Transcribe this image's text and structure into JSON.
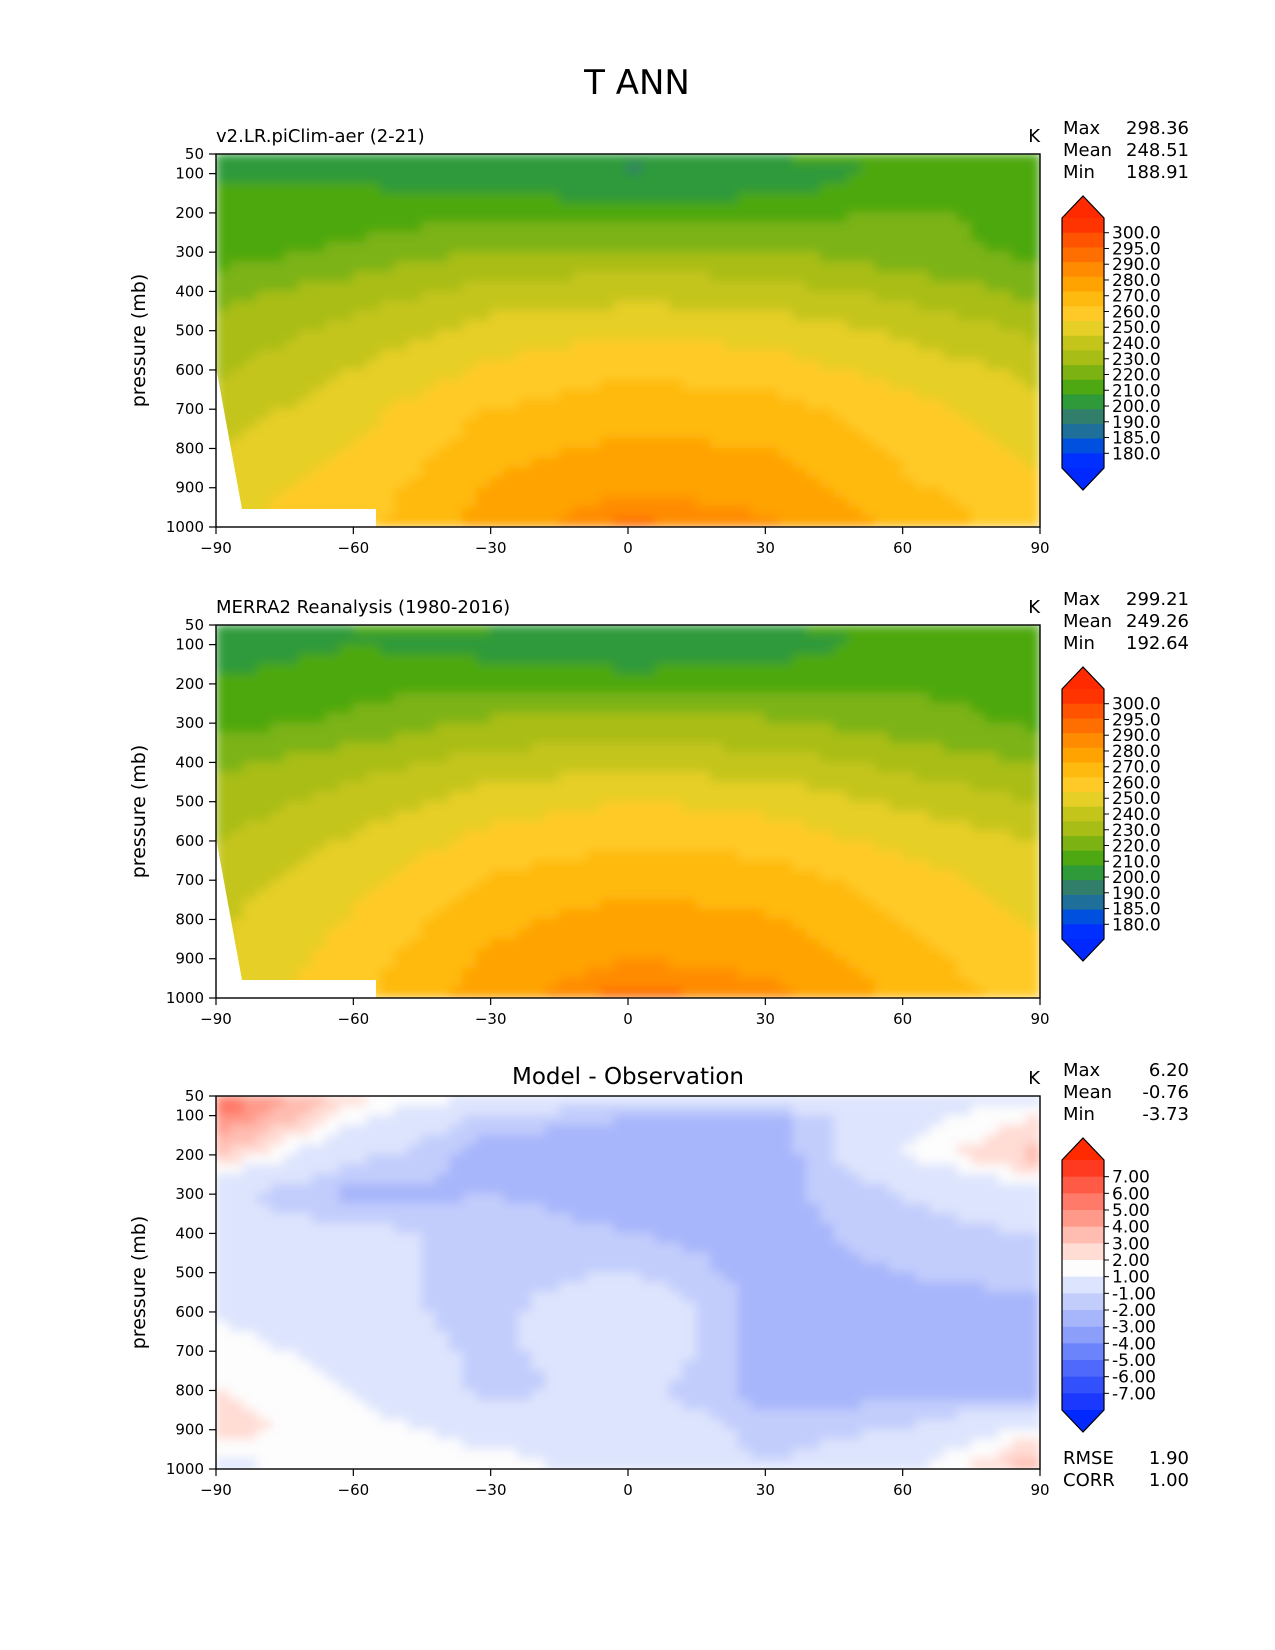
{
  "figure": {
    "title": "T ANN"
  },
  "panels": [
    {
      "id": "model",
      "subtitle_left": "v2.LR.piClim-aer (2-21)",
      "subtitle_center": "",
      "units": "K",
      "stats": [
        {
          "label": "Max",
          "value": "298.36"
        },
        {
          "label": "Mean",
          "value": "248.51"
        },
        {
          "label": "Min",
          "value": "188.91"
        }
      ],
      "footer_stats": [],
      "colorbar": {
        "labels": [
          "300.0",
          "295.0",
          "290.0",
          "280.0",
          "270.0",
          "260.0",
          "250.0",
          "240.0",
          "230.0",
          "220.0",
          "210.0",
          "200.0",
          "190.0",
          "185.0",
          "180.0"
        ],
        "colors": [
          "#ff3400",
          "#ff5300",
          "#ff6f00",
          "#ff8c00",
          "#ffa300",
          "#ffba10",
          "#ffca28",
          "#e6cf27",
          "#c4c51b",
          "#a9bd17",
          "#7cb313",
          "#4ea811",
          "#2f9a3a",
          "#317f6a",
          "#1e6f9a",
          "#0050e0",
          "#0030ff"
        ],
        "over": "#ff2a00",
        "under": "#0028ff"
      }
    },
    {
      "id": "obs",
      "subtitle_left": "MERRA2 Reanalysis (1980-2016)",
      "subtitle_center": "",
      "units": "K",
      "stats": [
        {
          "label": "Max",
          "value": "299.21"
        },
        {
          "label": "Mean",
          "value": "249.26"
        },
        {
          "label": "Min",
          "value": "192.64"
        }
      ],
      "footer_stats": [],
      "colorbar": {
        "labels": [
          "300.0",
          "295.0",
          "290.0",
          "280.0",
          "270.0",
          "260.0",
          "250.0",
          "240.0",
          "230.0",
          "220.0",
          "210.0",
          "200.0",
          "190.0",
          "185.0",
          "180.0"
        ],
        "colors": [
          "#ff3400",
          "#ff5300",
          "#ff6f00",
          "#ff8c00",
          "#ffa300",
          "#ffba10",
          "#ffca28",
          "#e6cf27",
          "#c4c51b",
          "#a9bd17",
          "#7cb313",
          "#4ea811",
          "#2f9a3a",
          "#317f6a",
          "#1e6f9a",
          "#0050e0",
          "#0030ff"
        ],
        "over": "#ff2a00",
        "under": "#0028ff"
      }
    },
    {
      "id": "diff",
      "subtitle_left": "",
      "subtitle_center": "Model - Observation",
      "units": "K",
      "stats": [
        {
          "label": "Max",
          "value": "6.20"
        },
        {
          "label": "Mean",
          "value": "-0.76"
        },
        {
          "label": "Min",
          "value": "-3.73"
        }
      ],
      "footer_stats": [
        {
          "label": "RMSE",
          "value": "1.90"
        },
        {
          "label": "CORR",
          "value": "1.00"
        }
      ],
      "colorbar": {
        "labels": [
          "7.00",
          "6.00",
          "5.00",
          "4.00",
          "3.00",
          "2.00",
          "1.00",
          "-1.00",
          "-2.00",
          "-3.00",
          "-4.00",
          "-5.00",
          "-6.00",
          "-7.00"
        ],
        "colors": [
          "#ff3a20",
          "#ff5a45",
          "#ff7a68",
          "#ff9a8a",
          "#ffbcb0",
          "#ffdcd4",
          "#fdfdfd",
          "#dde4fd",
          "#c2cdfc",
          "#a7b6fb",
          "#8a9efa",
          "#6c84fb",
          "#4f69fc",
          "#3350fd",
          "#1b38fe"
        ],
        "over": "#ff2a00",
        "under": "#0028ff"
      }
    }
  ],
  "axes": {
    "ylabel": "pressure (mb)",
    "x_ticks": [
      "−90",
      "−60",
      "−30",
      "0",
      "30",
      "60",
      "90"
    ],
    "y_ticks": [
      "50",
      "100",
      "200",
      "300",
      "400",
      "500",
      "600",
      "700",
      "800",
      "900",
      "1000"
    ]
  },
  "chart_data": [
    {
      "type": "heatmap",
      "title": "v2.LR.piClim-aer (2-21)",
      "units": "K",
      "ylabel": "pressure (mb)",
      "xlim": [
        -90,
        90
      ],
      "ylim": [
        1000,
        50
      ],
      "x_ticks": [
        -90,
        -60,
        -30,
        0,
        30,
        60,
        90
      ],
      "y_ticks": [
        50,
        100,
        200,
        300,
        400,
        500,
        600,
        700,
        800,
        900,
        1000
      ],
      "contour_levels": [
        180,
        185,
        190,
        200,
        210,
        220,
        230,
        240,
        250,
        260,
        270,
        280,
        290,
        295,
        300
      ],
      "lat": [
        -90,
        -60,
        -30,
        0,
        30,
        60,
        90
      ],
      "plev": [
        50,
        100,
        200,
        300,
        400,
        500,
        600,
        700,
        800,
        900,
        1000
      ],
      "values": [
        [
          207,
          210,
          212,
          205,
          212,
          212,
          215
        ],
        [
          209,
          208,
          203,
          198,
          201,
          213,
          217
        ],
        [
          213,
          215,
          216,
          215,
          216,
          221,
          218
        ],
        [
          215,
          222,
          232,
          232,
          232,
          223,
          218
        ],
        [
          226,
          235,
          243,
          246,
          244,
          237,
          227
        ],
        [
          233,
          243,
          254,
          258,
          256,
          248,
          238
        ],
        [
          238,
          250,
          262,
          268,
          265,
          256,
          248
        ],
        [
          244,
          256,
          270,
          276,
          274,
          264,
          252
        ],
        [
          250,
          260,
          276,
          282,
          280,
          268,
          257
        ],
        [
          255,
          264,
          281,
          289,
          286,
          272,
          262
        ],
        [
          258,
          266,
          285,
          297,
          292,
          277,
          265
        ]
      ],
      "stats": {
        "Max": 298.36,
        "Mean": 248.51,
        "Min": 188.91
      }
    },
    {
      "type": "heatmap",
      "title": "MERRA2 Reanalysis (1980-2016)",
      "units": "K",
      "ylabel": "pressure (mb)",
      "xlim": [
        -90,
        90
      ],
      "ylim": [
        1000,
        50
      ],
      "x_ticks": [
        -90,
        -60,
        -30,
        0,
        30,
        60,
        90
      ],
      "y_ticks": [
        50,
        100,
        200,
        300,
        400,
        500,
        600,
        700,
        800,
        900,
        1000
      ],
      "contour_levels": [
        180,
        185,
        190,
        200,
        210,
        220,
        230,
        240,
        250,
        260,
        270,
        280,
        290,
        295,
        300
      ],
      "lat": [
        -90,
        -60,
        -30,
        0,
        30,
        60,
        90
      ],
      "plev": [
        50,
        100,
        200,
        300,
        400,
        500,
        600,
        700,
        800,
        900,
        1000
      ],
      "values": [
        [
          201,
          210,
          212,
          205,
          211,
          212,
          218
        ],
        [
          203,
          210,
          205,
          199,
          203,
          214,
          216
        ],
        [
          211,
          216,
          218,
          216,
          217,
          219,
          215
        ],
        [
          216,
          222,
          232,
          232,
          232,
          225,
          218
        ],
        [
          227,
          236,
          244,
          247,
          244,
          237,
          229
        ],
        [
          234,
          244,
          255,
          260,
          257,
          248,
          240
        ],
        [
          240,
          251,
          263,
          269,
          266,
          257,
          250
        ],
        [
          245,
          257,
          271,
          277,
          275,
          265,
          254
        ],
        [
          248,
          261,
          277,
          284,
          281,
          270,
          258
        ],
        [
          250,
          265,
          282,
          290,
          287,
          274,
          262
        ],
        [
          249,
          267,
          286,
          298,
          293,
          278,
          265
        ]
      ],
      "stats": {
        "Max": 299.21,
        "Mean": 249.26,
        "Min": 192.64
      }
    },
    {
      "type": "heatmap",
      "title": "Model - Observation",
      "units": "K",
      "ylabel": "pressure (mb)",
      "xlim": [
        -90,
        90
      ],
      "ylim": [
        1000,
        50
      ],
      "x_ticks": [
        -90,
        -60,
        -30,
        0,
        30,
        60,
        90
      ],
      "y_ticks": [
        50,
        100,
        200,
        300,
        400,
        500,
        600,
        700,
        800,
        900,
        1000
      ],
      "contour_levels": [
        -7,
        -6,
        -5,
        -4,
        -3,
        -2,
        -1,
        1,
        2,
        3,
        4,
        5,
        6,
        7
      ],
      "lat": [
        -90,
        -60,
        -30,
        0,
        30,
        60,
        90
      ],
      "plev": [
        50,
        100,
        200,
        300,
        400,
        500,
        600,
        700,
        800,
        900,
        1000
      ],
      "values": [
        [
          6.0,
          2.5,
          1.0,
          1.5,
          2.0,
          1.0,
          -0.5
        ],
        [
          5.5,
          1.5,
          -1.5,
          -2.0,
          -2.5,
          0.5,
          2.0
        ],
        [
          3.0,
          -0.5,
          -2.5,
          -2.5,
          -3.0,
          1.0,
          3.5
        ],
        [
          -0.5,
          -2.5,
          -2.0,
          -2.5,
          -2.5,
          -1.0,
          0.5
        ],
        [
          -0.5,
          -0.5,
          -1.5,
          -2.0,
          -2.5,
          -1.5,
          -1.0
        ],
        [
          -0.5,
          -0.5,
          -1.5,
          -1.0,
          -2.5,
          -2.0,
          -1.5
        ],
        [
          1.0,
          -0.5,
          -1.5,
          0.5,
          -2.5,
          -2.5,
          -2.5
        ],
        [
          1.5,
          0.5,
          -1.5,
          0.5,
          -2.5,
          -2.5,
          -3.0
        ],
        [
          2.0,
          1.0,
          -1.5,
          -0.5,
          -2.5,
          -2.5,
          -2.5
        ],
        [
          2.5,
          1.5,
          0.5,
          0.5,
          -1.5,
          -1.0,
          1.5
        ],
        [
          0.5,
          1.5,
          1.5,
          0.5,
          -1.0,
          0.5,
          4.0
        ]
      ],
      "stats": {
        "Max": 6.2,
        "Mean": -0.76,
        "Min": -3.73,
        "RMSE": 1.9,
        "CORR": 1.0
      }
    }
  ]
}
